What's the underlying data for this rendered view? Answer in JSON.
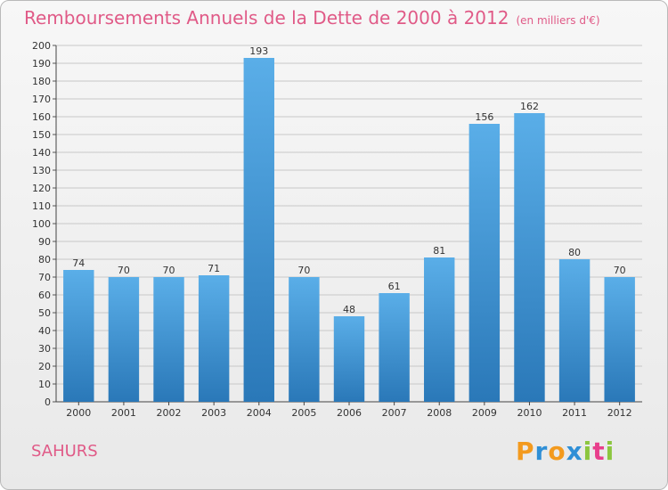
{
  "colors": {
    "title": "#e05a87",
    "bar_top": "#5aaee8",
    "bar_bottom": "#2a78b8",
    "grid": "#c8c8c8"
  },
  "chart_data": {
    "type": "bar",
    "title": "Remboursements Annuels de la Dette de 2000 à 2012",
    "subtitle": "(en milliers d'€)",
    "categories": [
      "2000",
      "2001",
      "2002",
      "2003",
      "2004",
      "2005",
      "2006",
      "2007",
      "2008",
      "2009",
      "2010",
      "2011",
      "2012"
    ],
    "values": [
      74,
      70,
      70,
      71,
      193,
      70,
      48,
      61,
      81,
      156,
      162,
      80,
      70
    ],
    "ylim": [
      0,
      200
    ],
    "ytick_step": 10,
    "grid": true,
    "data_labels": true
  },
  "commune": "SAHURS",
  "logo": {
    "letters": [
      "P",
      "r",
      "o",
      "x",
      "i",
      "t",
      "i"
    ],
    "colors": [
      "#f39a1e",
      "#2f8fd6",
      "#f39a1e",
      "#2f8fd6",
      "#8cc63f",
      "#e83e8c",
      "#8cc63f"
    ]
  }
}
